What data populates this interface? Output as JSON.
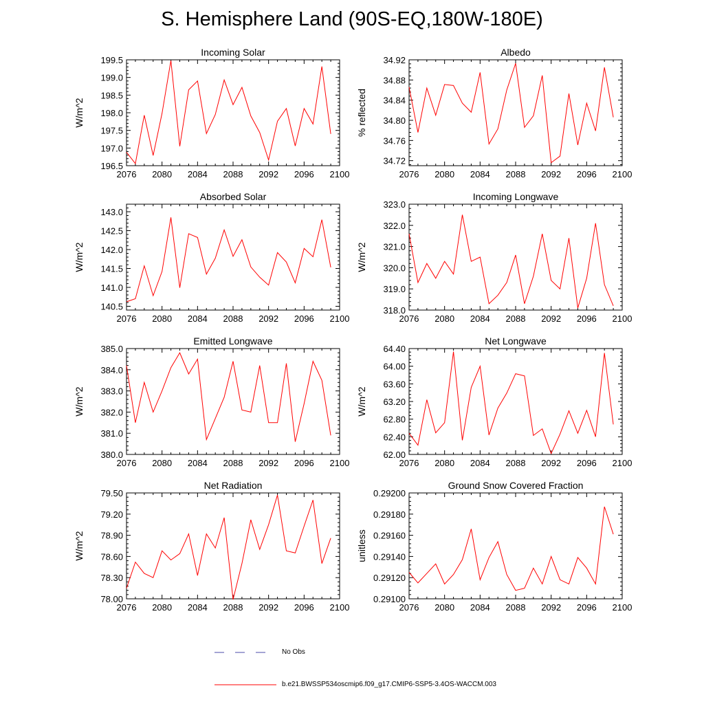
{
  "title": "S. Hemisphere Land (90S-EQ,180W-180E)",
  "colors": {
    "model": "#ff0000",
    "obs": "#4a4aa8"
  },
  "legend": {
    "obs_label": "No Obs",
    "model_label": "b.e21.BWSSP534oscmip6.f09_g17.CMIP6-SSP5-3.4OS-WACCM.003"
  },
  "chart_data": [
    {
      "type": "line",
      "title": "Incoming Solar",
      "ylabel": "W/m^2",
      "xlim": [
        2076,
        2100
      ],
      "ylim": [
        196.5,
        199.5
      ],
      "xticks": [
        "2076",
        "2080",
        "2084",
        "2088",
        "2092",
        "2096",
        "2100"
      ],
      "yticks": [
        "196.5",
        "197.0",
        "197.5",
        "198.0",
        "198.5",
        "199.0",
        "199.5"
      ],
      "series": [
        {
          "x": [
            2076,
            2077,
            2078,
            2079,
            2080,
            2081,
            2082,
            2083,
            2084,
            2085,
            2086,
            2087,
            2088,
            2089,
            2090,
            2091,
            2092,
            2093,
            2094,
            2095,
            2096,
            2097,
            2098,
            2099
          ],
          "values": [
            196.88,
            196.56,
            197.93,
            196.79,
            197.98,
            199.48,
            197.05,
            198.65,
            198.9,
            197.41,
            197.95,
            198.93,
            198.23,
            198.72,
            197.91,
            197.44,
            196.66,
            197.76,
            198.12,
            197.06,
            198.12,
            197.68,
            199.31,
            197.4
          ]
        }
      ]
    },
    {
      "type": "line",
      "title": "Albedo",
      "ylabel": "% reflected",
      "xlim": [
        2076,
        2100
      ],
      "ylim": [
        34.71,
        34.92
      ],
      "xticks": [
        "2076",
        "2080",
        "2084",
        "2088",
        "2092",
        "2096",
        "2100"
      ],
      "yticks": [
        "34.72",
        "34.76",
        "34.80",
        "34.84",
        "34.88",
        "34.92"
      ],
      "series": [
        {
          "x": [
            2076,
            2077,
            2078,
            2079,
            2080,
            2081,
            2082,
            2083,
            2084,
            2085,
            2086,
            2087,
            2088,
            2089,
            2090,
            2091,
            2092,
            2093,
            2094,
            2095,
            2096,
            2097,
            2098,
            2099
          ],
          "values": [
            34.866,
            34.776,
            34.864,
            34.81,
            34.871,
            34.869,
            34.834,
            34.816,
            34.895,
            34.753,
            34.783,
            34.86,
            34.913,
            34.786,
            34.809,
            34.889,
            34.716,
            34.729,
            34.853,
            34.751,
            34.834,
            34.779,
            34.905,
            34.806
          ]
        }
      ]
    },
    {
      "type": "line",
      "title": "Absorbed Solar",
      "ylabel": "W/m^2",
      "xlim": [
        2076,
        2100
      ],
      "ylim": [
        140.4,
        143.2
      ],
      "xticks": [
        "2076",
        "2080",
        "2084",
        "2088",
        "2092",
        "2096",
        "2100"
      ],
      "yticks": [
        "140.5",
        "141.0",
        "141.5",
        "142.0",
        "142.5",
        "143.0"
      ],
      "series": [
        {
          "x": [
            2076,
            2077,
            2078,
            2079,
            2080,
            2081,
            2082,
            2083,
            2084,
            2085,
            2086,
            2087,
            2088,
            2089,
            2090,
            2091,
            2092,
            2093,
            2094,
            2095,
            2096,
            2097,
            2098,
            2099
          ],
          "values": [
            140.62,
            140.7,
            141.57,
            140.78,
            141.42,
            142.85,
            140.99,
            142.42,
            142.32,
            141.35,
            141.77,
            142.52,
            141.82,
            142.26,
            141.54,
            141.27,
            141.06,
            141.92,
            141.67,
            141.12,
            142.03,
            141.81,
            142.79,
            141.53
          ]
        }
      ]
    },
    {
      "type": "line",
      "title": "Incoming Longwave",
      "ylabel": "W/m^2",
      "xlim": [
        2076,
        2100
      ],
      "ylim": [
        318.0,
        323.0
      ],
      "xticks": [
        "2076",
        "2080",
        "2084",
        "2088",
        "2092",
        "2096",
        "2100"
      ],
      "yticks": [
        "318.0",
        "319.0",
        "320.0",
        "321.0",
        "322.0",
        "323.0"
      ],
      "series": [
        {
          "x": [
            2076,
            2077,
            2078,
            2079,
            2080,
            2081,
            2082,
            2083,
            2084,
            2085,
            2086,
            2087,
            2088,
            2089,
            2090,
            2091,
            2092,
            2093,
            2094,
            2095,
            2096,
            2097,
            2098,
            2099
          ],
          "values": [
            321.6,
            319.3,
            320.2,
            319.5,
            320.3,
            319.7,
            322.5,
            320.3,
            320.5,
            318.3,
            318.7,
            319.3,
            320.6,
            318.3,
            319.6,
            321.6,
            319.4,
            319.0,
            321.4,
            318.1,
            319.5,
            322.1,
            319.2,
            318.2
          ]
        }
      ]
    },
    {
      "type": "line",
      "title": "Emitted Longwave",
      "ylabel": "W/m^2",
      "xlim": [
        2076,
        2100
      ],
      "ylim": [
        380.0,
        385.0
      ],
      "xticks": [
        "2076",
        "2080",
        "2084",
        "2088",
        "2092",
        "2096",
        "2100"
      ],
      "yticks": [
        "380.0",
        "381.0",
        "382.0",
        "383.0",
        "384.0",
        "385.0"
      ],
      "series": [
        {
          "x": [
            2076,
            2077,
            2078,
            2079,
            2080,
            2081,
            2082,
            2083,
            2084,
            2085,
            2086,
            2087,
            2088,
            2089,
            2090,
            2091,
            2092,
            2093,
            2094,
            2095,
            2096,
            2097,
            2098,
            2099
          ],
          "values": [
            384.2,
            381.5,
            383.4,
            382.0,
            383.0,
            384.1,
            384.8,
            383.8,
            384.5,
            380.7,
            381.7,
            382.7,
            384.4,
            382.1,
            382.0,
            384.2,
            381.5,
            381.5,
            384.3,
            380.6,
            382.4,
            384.4,
            383.5,
            380.9
          ]
        }
      ]
    },
    {
      "type": "line",
      "title": "Net Longwave",
      "ylabel": "W/m^2",
      "xlim": [
        2076,
        2100
      ],
      "ylim": [
        62.0,
        64.4
      ],
      "xticks": [
        "2076",
        "2080",
        "2084",
        "2088",
        "2092",
        "2096",
        "2100"
      ],
      "yticks": [
        "62.00",
        "62.40",
        "62.80",
        "63.20",
        "63.60",
        "64.00",
        "64.40"
      ],
      "series": [
        {
          "x": [
            2076,
            2077,
            2078,
            2079,
            2080,
            2081,
            2082,
            2083,
            2084,
            2085,
            2086,
            2087,
            2088,
            2089,
            2090,
            2091,
            2092,
            2093,
            2094,
            2095,
            2096,
            2097,
            2098,
            2099
          ],
          "values": [
            62.48,
            62.21,
            63.24,
            62.49,
            62.72,
            64.33,
            62.32,
            63.52,
            64.0,
            62.44,
            63.05,
            63.39,
            63.83,
            63.78,
            62.43,
            62.58,
            62.02,
            62.46,
            62.99,
            62.48,
            63.0,
            62.4,
            64.3,
            62.68
          ]
        }
      ]
    },
    {
      "type": "line",
      "title": "Net Radiation",
      "ylabel": "W/m^2",
      "xlim": [
        2076,
        2100
      ],
      "ylim": [
        78.0,
        79.5
      ],
      "xticks": [
        "2076",
        "2080",
        "2084",
        "2088",
        "2092",
        "2096",
        "2100"
      ],
      "yticks": [
        "78.00",
        "78.30",
        "78.60",
        "78.90",
        "79.20",
        "79.50"
      ],
      "series": [
        {
          "x": [
            2076,
            2077,
            2078,
            2079,
            2080,
            2081,
            2082,
            2083,
            2084,
            2085,
            2086,
            2087,
            2088,
            2089,
            2090,
            2091,
            2092,
            2093,
            2094,
            2095,
            2096,
            2097,
            2098,
            2099
          ],
          "values": [
            78.15,
            78.52,
            78.36,
            78.3,
            78.68,
            78.55,
            78.64,
            78.92,
            78.33,
            78.92,
            78.72,
            79.15,
            77.99,
            78.5,
            79.12,
            78.7,
            79.05,
            79.47,
            78.68,
            78.65,
            79.03,
            79.4,
            78.5,
            78.86
          ]
        }
      ]
    },
    {
      "type": "line",
      "title": "Ground Snow Covered Fraction",
      "ylabel": "unitless",
      "xlim": [
        2076,
        2100
      ],
      "ylim": [
        0.291,
        0.292
      ],
      "xticks": [
        "2076",
        "2080",
        "2084",
        "2088",
        "2092",
        "2096",
        "2100"
      ],
      "yticks": [
        "0.29100",
        "0.29120",
        "0.29140",
        "0.29160",
        "0.29180",
        "0.29200"
      ],
      "series": [
        {
          "x": [
            2076,
            2077,
            2078,
            2079,
            2080,
            2081,
            2082,
            2083,
            2084,
            2085,
            2086,
            2087,
            2088,
            2089,
            2090,
            2091,
            2092,
            2093,
            2094,
            2095,
            2096,
            2097,
            2098,
            2099
          ],
          "values": [
            0.29125,
            0.29115,
            0.29124,
            0.29133,
            0.29114,
            0.29123,
            0.29137,
            0.29166,
            0.29118,
            0.29139,
            0.29154,
            0.29123,
            0.29108,
            0.2911,
            0.29129,
            0.29114,
            0.2914,
            0.29118,
            0.29114,
            0.29139,
            0.29129,
            0.29114,
            0.29187,
            0.29161
          ]
        }
      ]
    }
  ]
}
